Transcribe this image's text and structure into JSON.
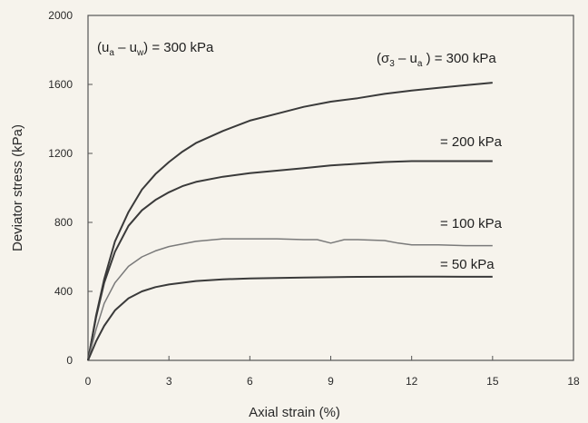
{
  "chart_data": {
    "type": "line",
    "title": "",
    "xlabel": "Axial strain (%)",
    "ylabel": "Deviator stress (kPa)",
    "xlim": [
      0,
      18
    ],
    "ylim": [
      0,
      2000
    ],
    "x_ticks": [
      "0",
      "3",
      "6",
      "9",
      "12",
      "15",
      "18"
    ],
    "y_ticks": [
      "0",
      "400",
      "800",
      "1200",
      "1600",
      "2000"
    ],
    "grid": false,
    "annotations": {
      "suction": {
        "lhs": "(u",
        "a": "a",
        "minus": " – u",
        "w": "w",
        "rhs": ") = 300 kPa"
      },
      "confining": {
        "lhs": "(σ",
        "three": "3",
        "minus": " – u",
        "a": "a",
        "rhs": " ) = 300 kPa"
      }
    },
    "series": [
      {
        "name": "= 300 kPa",
        "color": "#3a3a3a",
        "x": [
          0,
          0.3,
          0.6,
          1,
          1.5,
          2,
          2.5,
          3,
          3.5,
          4,
          5,
          6,
          7,
          8,
          9,
          10,
          11,
          12,
          13,
          14,
          15
        ],
        "y": [
          0,
          260,
          470,
          690,
          860,
          990,
          1080,
          1150,
          1210,
          1260,
          1330,
          1390,
          1430,
          1470,
          1500,
          1520,
          1545,
          1565,
          1580,
          1595,
          1610
        ]
      },
      {
        "name": "= 200 kPa",
        "label": "= 200 kPa",
        "color": "#3a3a3a",
        "x": [
          0,
          0.3,
          0.6,
          1,
          1.5,
          2,
          2.5,
          3,
          3.5,
          4,
          5,
          6,
          7,
          8,
          9,
          10,
          11,
          12,
          13,
          14,
          15
        ],
        "y": [
          0,
          250,
          450,
          630,
          780,
          870,
          930,
          975,
          1010,
          1035,
          1065,
          1085,
          1100,
          1115,
          1130,
          1140,
          1150,
          1155,
          1155,
          1155,
          1155
        ]
      },
      {
        "name": "= 100 kPa",
        "label": "= 100 kPa",
        "color": "#7a7a7a",
        "x": [
          0,
          0.3,
          0.6,
          1,
          1.5,
          2,
          2.5,
          3,
          4,
          5,
          6,
          7,
          8,
          8.5,
          9,
          9.5,
          10,
          11,
          11.5,
          12,
          13,
          14,
          15
        ],
        "y": [
          0,
          180,
          330,
          450,
          545,
          600,
          635,
          660,
          690,
          705,
          705,
          705,
          700,
          700,
          680,
          700,
          700,
          695,
          680,
          670,
          670,
          665,
          665
        ]
      },
      {
        "name": "= 50 kPa",
        "label": "= 50 kPa",
        "color": "#3a3a3a",
        "x": [
          0,
          0.3,
          0.6,
          1,
          1.5,
          2,
          2.5,
          3,
          4,
          5,
          6,
          7,
          8,
          9,
          10,
          11,
          12,
          13,
          14,
          15
        ],
        "y": [
          0,
          110,
          200,
          290,
          360,
          400,
          425,
          440,
          460,
          470,
          475,
          478,
          480,
          482,
          484,
          485,
          486,
          486,
          485,
          485
        ]
      }
    ]
  }
}
